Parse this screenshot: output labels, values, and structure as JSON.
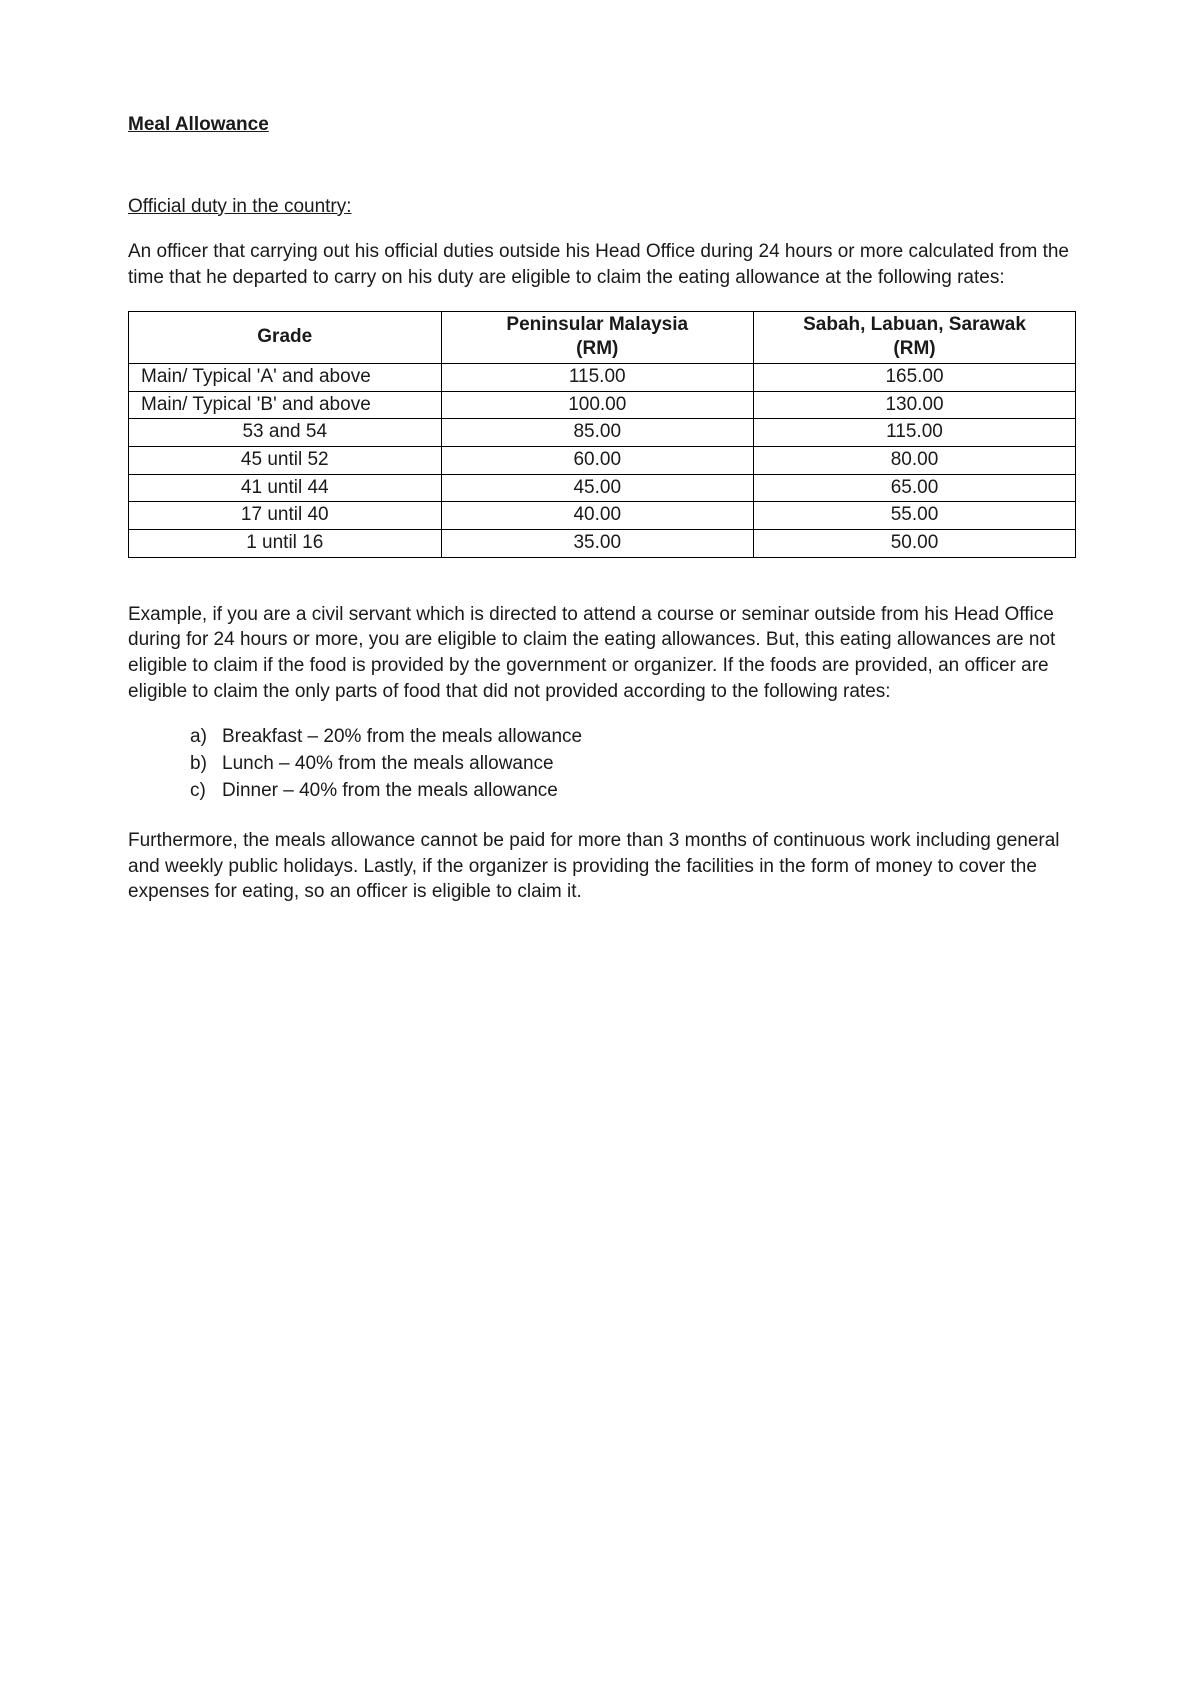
{
  "title": "Meal Allowance",
  "subtitle": "Official duty in the country:",
  "intro_para": "An officer that carrying out his official duties outside his Head Office during 24 hours or more calculated from the time that he departed to carry on his duty are eligible to claim the eating allowance at the following rates:",
  "table": {
    "type": "table",
    "border_color": "#000000",
    "font_size": 19,
    "columns": [
      {
        "label": "Grade",
        "align": "center",
        "width_pct": 33
      },
      {
        "label": "Peninsular Malaysia (RM)",
        "align": "center",
        "width_pct": 33
      },
      {
        "label": "Sabah, Labuan, Sarawak (RM)",
        "align": "center",
        "width_pct": 34
      }
    ],
    "header_line1": {
      "c0": "Grade",
      "c1": "Peninsular Malaysia",
      "c2": "Sabah, Labuan, Sarawak"
    },
    "header_line2": {
      "c1": "(RM)",
      "c2": "(RM)"
    },
    "rows": [
      {
        "grade": "Main/ Typical 'A' and above",
        "pm": "115.00",
        "sls": "165.00",
        "grade_align": "left"
      },
      {
        "grade": "Main/ Typical 'B' and above",
        "pm": "100.00",
        "sls": "130.00",
        "grade_align": "left"
      },
      {
        "grade": "53 and 54",
        "pm": "85.00",
        "sls": "115.00",
        "grade_align": "center"
      },
      {
        "grade": "45 until 52",
        "pm": "60.00",
        "sls": "80.00",
        "grade_align": "center"
      },
      {
        "grade": "41 until 44",
        "pm": "45.00",
        "sls": "65.00",
        "grade_align": "center"
      },
      {
        "grade": "17 until 40",
        "pm": "40.00",
        "sls": "55.00",
        "grade_align": "center"
      },
      {
        "grade": "1 until 16",
        "pm": "35.00",
        "sls": "50.00",
        "grade_align": "center"
      }
    ]
  },
  "example_para": "Example, if you are a civil servant which is directed to attend a course or seminar outside from his Head Office during for 24 hours or more, you are eligible to claim the eating allowances. But, this eating allowances are not eligible to claim if the food is provided by the government or organizer. If the foods are provided, an officer are eligible to claim the only parts of food that did not provided according to the following rates:",
  "list": {
    "items": [
      {
        "marker": "a)",
        "text": "Breakfast – 20% from the meals allowance"
      },
      {
        "marker": "b)",
        "text": "Lunch – 40% from the meals allowance"
      },
      {
        "marker": "c)",
        "text": "Dinner – 40% from the meals allowance"
      }
    ]
  },
  "final_para": "Furthermore, the meals allowance cannot be paid for more than 3 months of continuous work including general and weekly public holidays. Lastly, if the organizer is providing the facilities in the form of money to cover the expenses for eating, so an officer is eligible to claim it."
}
